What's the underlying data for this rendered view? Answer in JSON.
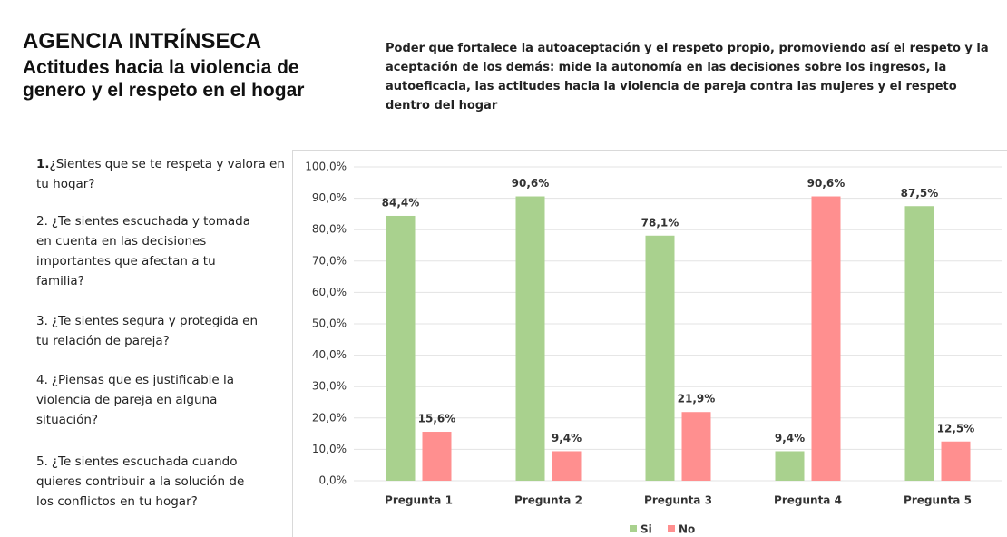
{
  "header": {
    "title": "AGENCIA INTRÍNSECA",
    "subtitle": "Actitudes hacia la violencia de genero y el respeto en el hogar",
    "description": "Poder que fortalece la autoaceptación y el respeto propio, promoviendo así el respeto y la aceptación de los demás: mide la autonomía en las decisiones sobre los ingresos, la autoeficacia, las actitudes hacia la violencia de pareja contra las mujeres y el respeto dentro del hogar"
  },
  "questions": [
    {
      "number": "1.",
      "text": "¿Sientes que se te respeta y valora en tu hogar?"
    },
    {
      "number": "2.",
      "text": "¿Te sientes escuchada y tomada en cuenta en las decisiones importantes que afectan a tu familia?"
    },
    {
      "number": "3.",
      "text": "¿Te sientes segura y protegida en tu relación de pareja?"
    },
    {
      "number": "4.",
      "text": "¿Piensas que es justificable la violencia de pareja en alguna situación?"
    },
    {
      "number": "5.",
      "text": "¿Te sientes escuchada cuando quieres contribuir a la solución de los conflictos en tu hogar?"
    }
  ],
  "chart_data": {
    "type": "bar",
    "categories": [
      "Pregunta 1",
      "Pregunta 2",
      "Pregunta 3",
      "Pregunta 4",
      "Pregunta 5"
    ],
    "series": [
      {
        "name": "Si",
        "color": "#a9d18e",
        "values": [
          84.4,
          90.6,
          78.1,
          9.4,
          87.5
        ],
        "value_labels": [
          "84,4%",
          "90,6%",
          "78,1%",
          "9,4%",
          "87,5%"
        ]
      },
      {
        "name": "No",
        "color": "#ff8f8f",
        "values": [
          15.6,
          9.4,
          21.9,
          90.6,
          12.5
        ],
        "value_labels": [
          "15,6%",
          "9,4%",
          "21,9%",
          "90,6%",
          "12,5%"
        ]
      }
    ],
    "ylim": [
      0,
      100
    ],
    "yticks": [
      {
        "value": 0,
        "label": "0,0%"
      },
      {
        "value": 10,
        "label": "10,0%"
      },
      {
        "value": 20,
        "label": "20,0%"
      },
      {
        "value": 30,
        "label": "30,0%"
      },
      {
        "value": 40,
        "label": "40,0%"
      },
      {
        "value": 50,
        "label": "50,0%"
      },
      {
        "value": 60,
        "label": "60,0%"
      },
      {
        "value": 70,
        "label": "70,0%"
      },
      {
        "value": 80,
        "label": "80,0%"
      },
      {
        "value": 90,
        "label": "90,0%"
      },
      {
        "value": 100,
        "label": "100,0%"
      }
    ],
    "grid": true,
    "legend": "bottom"
  }
}
